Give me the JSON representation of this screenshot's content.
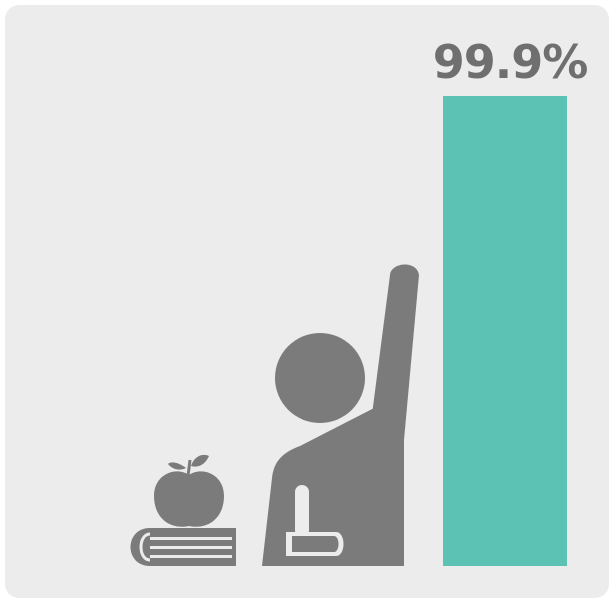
{
  "chart_data": {
    "type": "bar",
    "categories": [
      ""
    ],
    "values": [
      99.9
    ],
    "value_label": "99.9%",
    "ylim": [
      0,
      100
    ],
    "grid": false,
    "legend": "none",
    "colors": {
      "bar": "#5cc2b4",
      "text": "#6f6f6f",
      "icon": "#7b7b7b",
      "background": "#ececec"
    }
  },
  "illustration": {
    "icons": [
      "student-raising-hand-icon",
      "apple-icon",
      "books-icon"
    ]
  }
}
